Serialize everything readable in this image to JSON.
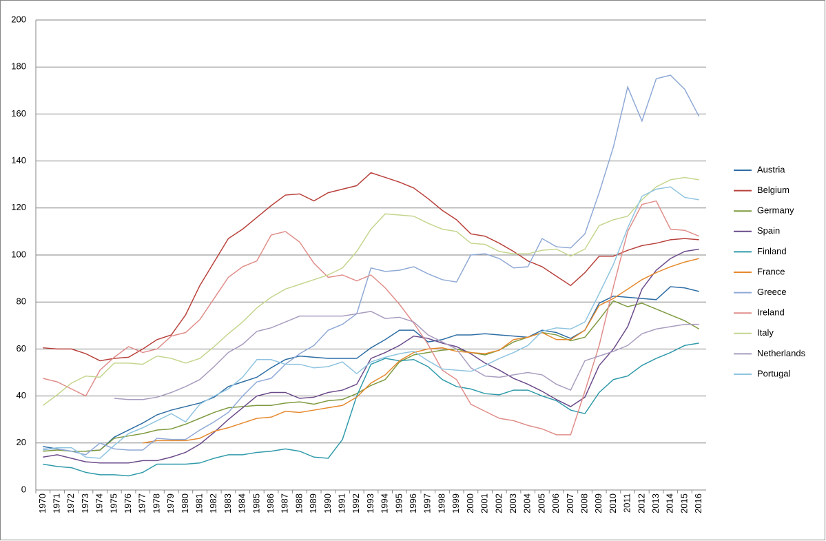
{
  "chart_data": {
    "type": "line",
    "categories": [
      "1970",
      "1971",
      "1972",
      "1973",
      "1974",
      "1975",
      "1976",
      "1977",
      "1978",
      "1979",
      "1980",
      "1981",
      "1982",
      "1983",
      "1984",
      "1985",
      "1986",
      "1987",
      "1988",
      "1989",
      "1990",
      "1991",
      "1992",
      "1993",
      "1994",
      "1995",
      "1996",
      "1997",
      "1998",
      "1999",
      "2000",
      "2001",
      "2002",
      "2003",
      "2004",
      "2005",
      "2006",
      "2007",
      "2008",
      "2009",
      "2010",
      "2011",
      "2012",
      "2013",
      "2014",
      "2015",
      "2016"
    ],
    "ylim": [
      0,
      200
    ],
    "yticks": [
      0,
      20,
      40,
      60,
      80,
      100,
      120,
      140,
      160,
      180,
      200
    ],
    "grid": true,
    "legend": "right",
    "series": [
      {
        "name": "Austria",
        "color": "#2e6da4",
        "values": [
          18.5,
          17.5,
          16.5,
          16.5,
          17,
          22.5,
          25.5,
          28.5,
          32,
          34,
          35.5,
          37,
          39.5,
          44,
          46,
          48,
          52,
          55.5,
          57,
          56.5,
          56,
          56,
          56,
          60.5,
          64,
          68,
          68,
          63,
          64,
          66,
          66,
          66.5,
          66,
          65.5,
          65,
          68,
          67,
          64.5,
          68,
          79.5,
          82.5,
          82,
          81.5,
          81,
          86.5,
          86,
          84.5
        ]
      },
      {
        "name": "Belgium",
        "color": "#b8413b",
        "values": [
          60.5,
          60,
          60,
          58,
          55,
          56,
          56.5,
          60,
          64,
          66,
          74.5,
          87,
          97,
          107,
          111,
          116,
          121,
          125.5,
          126,
          123,
          126.5,
          128,
          129.5,
          135,
          133,
          131,
          128.5,
          124,
          119,
          115,
          109,
          108,
          105,
          101.5,
          97.5,
          95,
          91,
          87,
          92.5,
          99.5,
          99.5,
          102,
          104,
          105,
          106.5,
          107,
          106.5
        ]
      },
      {
        "name": "Germany",
        "color": "#7f9a3f",
        "values": [
          16.5,
          17,
          16.5,
          16.5,
          17,
          22,
          23,
          24,
          25.5,
          26,
          28,
          30.5,
          33,
          35,
          35.5,
          36,
          36,
          37,
          37.5,
          36.5,
          38,
          38.5,
          41,
          44.5,
          47,
          54.5,
          57.5,
          58.5,
          59.5,
          60,
          58.5,
          57.5,
          59.5,
          63,
          65,
          67,
          66,
          63.5,
          65,
          72.5,
          80.5,
          78,
          79.5,
          77,
          74.5,
          72,
          68.5
        ]
      },
      {
        "name": "Spain",
        "color": "#6b4a8a",
        "values": [
          14,
          15,
          13.5,
          12,
          11.5,
          11.5,
          11.5,
          12.5,
          12.5,
          14,
          16,
          19.5,
          24.5,
          30,
          35,
          40,
          41.5,
          41.5,
          39,
          39.5,
          41.5,
          42.5,
          45,
          56,
          58.5,
          61.5,
          65.5,
          64.5,
          62.5,
          61,
          58,
          54,
          51,
          47.5,
          45,
          42,
          38.5,
          35.5,
          39.5,
          53,
          60,
          69.5,
          85.5,
          93.5,
          98.5,
          101.5,
          102.5
        ]
      },
      {
        "name": "Finland",
        "color": "#2f9aaa",
        "values": [
          11,
          10,
          9.5,
          7.5,
          6.5,
          6.5,
          6,
          7.5,
          11,
          11,
          11,
          11.5,
          13.5,
          15,
          15,
          16,
          16.5,
          17.5,
          16.5,
          14,
          13.5,
          21.5,
          40,
          53.5,
          56,
          55,
          55.5,
          52.5,
          47,
          44,
          43,
          41,
          40.5,
          42.5,
          42.5,
          40,
          38,
          34,
          32.5,
          41.5,
          47,
          48.5,
          53,
          56,
          58.5,
          61.5,
          62.5
        ]
      },
      {
        "name": "France",
        "color": "#e6892e",
        "values": [
          null,
          null,
          null,
          null,
          null,
          null,
          null,
          20,
          21,
          21,
          21,
          22,
          25,
          26.5,
          28.5,
          30.5,
          31,
          33.5,
          33,
          34,
          35,
          36,
          39.5,
          45.5,
          49,
          55,
          58.5,
          60,
          60.5,
          59,
          58.5,
          58,
          59.5,
          64,
          65,
          67,
          64,
          64,
          68,
          78.5,
          81.5,
          85.5,
          89.5,
          92.5,
          95,
          97,
          98.5
        ]
      },
      {
        "name": "Greece",
        "color": "#8fa9d6",
        "values": [
          17.5,
          17.5,
          16.5,
          15,
          20,
          17.5,
          17,
          17,
          22,
          21.5,
          21.5,
          25.5,
          29,
          33,
          40,
          46,
          47.5,
          53.5,
          58,
          61.5,
          68,
          70.5,
          75,
          94.5,
          93,
          93.5,
          95,
          92,
          89.5,
          88.5,
          100,
          100.5,
          98.5,
          94.5,
          95,
          107,
          103.5,
          103,
          109,
          126.5,
          146,
          171.5,
          157,
          175,
          176.5,
          170.5,
          159
        ]
      },
      {
        "name": "Ireland",
        "color": "#e08e8a",
        "values": [
          47.5,
          46,
          43,
          40,
          51,
          56.5,
          61,
          58.5,
          60,
          65.5,
          67,
          72.5,
          81.5,
          90.5,
          95,
          97.5,
          108.5,
          110,
          105.5,
          96.5,
          90.5,
          91.5,
          89,
          91.5,
          86,
          79,
          71,
          62,
          51,
          47,
          36.5,
          33.5,
          30.5,
          29.5,
          27.5,
          26,
          23.5,
          23.5,
          42,
          61.5,
          86.5,
          110,
          121.5,
          123,
          111,
          110.5,
          108
        ]
      },
      {
        "name": "Italy",
        "color": "#c4d68e",
        "values": [
          36,
          40.5,
          45.5,
          48.5,
          48,
          54,
          54,
          53.5,
          57,
          56,
          54,
          56,
          61,
          66.5,
          71.5,
          77.5,
          82,
          85.5,
          87.5,
          89.5,
          91.5,
          94.5,
          101.5,
          111,
          117.5,
          117,
          116.5,
          113.5,
          111,
          110,
          105,
          104.5,
          101.5,
          100.5,
          100.5,
          102,
          102.5,
          99.5,
          102.5,
          112.5,
          115,
          116.5,
          123.5,
          129,
          132,
          133,
          132
        ]
      },
      {
        "name": "Netherlands",
        "color": "#a99cbf",
        "values": [
          null,
          null,
          null,
          null,
          null,
          39,
          38.5,
          38.5,
          39.5,
          41.5,
          44,
          47,
          52.5,
          58.5,
          62,
          67.5,
          69,
          71.5,
          74,
          74,
          74,
          74,
          75,
          76,
          73,
          73.5,
          71.5,
          66,
          63,
          60,
          52,
          48.5,
          48,
          49,
          50,
          49,
          45,
          42.5,
          55,
          57,
          59,
          61.5,
          66.5,
          68.5,
          69.5,
          70.5,
          70.5
        ]
      },
      {
        "name": "Portugal",
        "color": "#8fc4e0",
        "values": [
          17,
          18,
          18,
          14,
          13.5,
          19,
          24,
          26.5,
          29.5,
          32.5,
          29,
          36.5,
          40,
          43,
          48,
          55.5,
          55.5,
          53.5,
          53.5,
          52,
          52.5,
          54.5,
          49.5,
          54.5,
          56.5,
          58,
          59,
          55,
          51.5,
          51,
          50.5,
          53,
          56,
          58.5,
          61.5,
          67.5,
          69,
          68.5,
          71.5,
          83.5,
          96,
          111.5,
          125,
          128,
          129,
          124.5,
          123.5
        ]
      }
    ]
  }
}
